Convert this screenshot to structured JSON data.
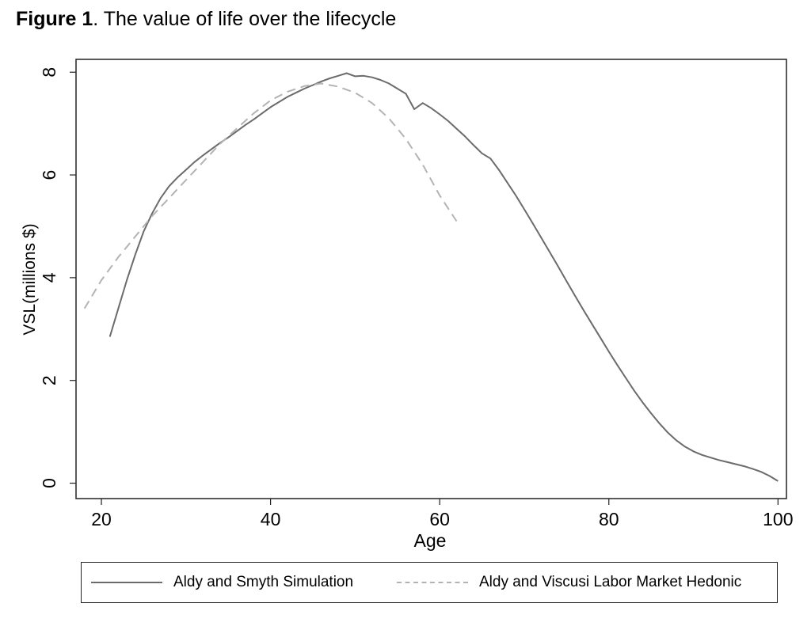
{
  "figure": {
    "label": "Figure 1",
    "caption": ". The value of life over the lifecycle"
  },
  "chart_data": {
    "type": "line",
    "xlabel": "Age",
    "ylabel": "VSL(millions $)",
    "xlim": [
      17,
      101
    ],
    "ylim": [
      -0.3,
      8.25
    ],
    "xticks": [
      20,
      40,
      60,
      80,
      100
    ],
    "yticks": [
      0,
      2,
      4,
      6,
      8
    ],
    "grid": false,
    "legend_position": "bottom",
    "series": [
      {
        "name": "Aldy and Smyth Simulation",
        "color": "#6b6b6b",
        "style": "solid",
        "x": [
          21,
          22,
          23,
          24,
          25,
          26,
          27,
          28,
          29,
          30,
          31,
          32,
          33,
          34,
          35,
          36,
          37,
          38,
          39,
          40,
          41,
          42,
          43,
          44,
          45,
          46,
          47,
          48,
          49,
          50,
          51,
          52,
          53,
          54,
          55,
          56,
          57,
          58,
          59,
          60,
          61,
          62,
          63,
          64,
          65,
          66,
          67,
          68,
          69,
          70,
          71,
          72,
          73,
          74,
          75,
          76,
          77,
          78,
          79,
          80,
          81,
          82,
          83,
          84,
          85,
          86,
          87,
          88,
          89,
          90,
          91,
          92,
          93,
          94,
          95,
          96,
          97,
          98,
          99,
          100
        ],
        "y": [
          2.85,
          3.4,
          3.95,
          4.45,
          4.9,
          5.25,
          5.55,
          5.78,
          5.95,
          6.1,
          6.25,
          6.38,
          6.5,
          6.62,
          6.73,
          6.85,
          6.97,
          7.08,
          7.2,
          7.32,
          7.42,
          7.52,
          7.6,
          7.68,
          7.75,
          7.82,
          7.88,
          7.93,
          7.98,
          7.92,
          7.93,
          7.9,
          7.85,
          7.78,
          7.68,
          7.58,
          7.28,
          7.4,
          7.3,
          7.18,
          7.05,
          6.9,
          6.75,
          6.58,
          6.42,
          6.32,
          6.1,
          5.85,
          5.6,
          5.33,
          5.06,
          4.78,
          4.5,
          4.22,
          3.93,
          3.65,
          3.37,
          3.1,
          2.83,
          2.56,
          2.3,
          2.05,
          1.8,
          1.57,
          1.36,
          1.16,
          0.98,
          0.83,
          0.71,
          0.62,
          0.55,
          0.5,
          0.45,
          0.41,
          0.37,
          0.33,
          0.28,
          0.22,
          0.14,
          0.04
        ]
      },
      {
        "name": "Aldy and Viscusi Labor Market Hedonic",
        "color": "#b3b3b3",
        "style": "dashed",
        "x": [
          18,
          20,
          22,
          24,
          26,
          28,
          30,
          32,
          34,
          36,
          38,
          40,
          42,
          44,
          46,
          48,
          50,
          52,
          54,
          56,
          58,
          60,
          62
        ],
        "y": [
          3.4,
          3.95,
          4.4,
          4.8,
          5.2,
          5.55,
          5.9,
          6.25,
          6.6,
          6.9,
          7.2,
          7.45,
          7.62,
          7.73,
          7.78,
          7.72,
          7.6,
          7.4,
          7.1,
          6.7,
          6.2,
          5.6,
          5.1
        ]
      }
    ]
  }
}
